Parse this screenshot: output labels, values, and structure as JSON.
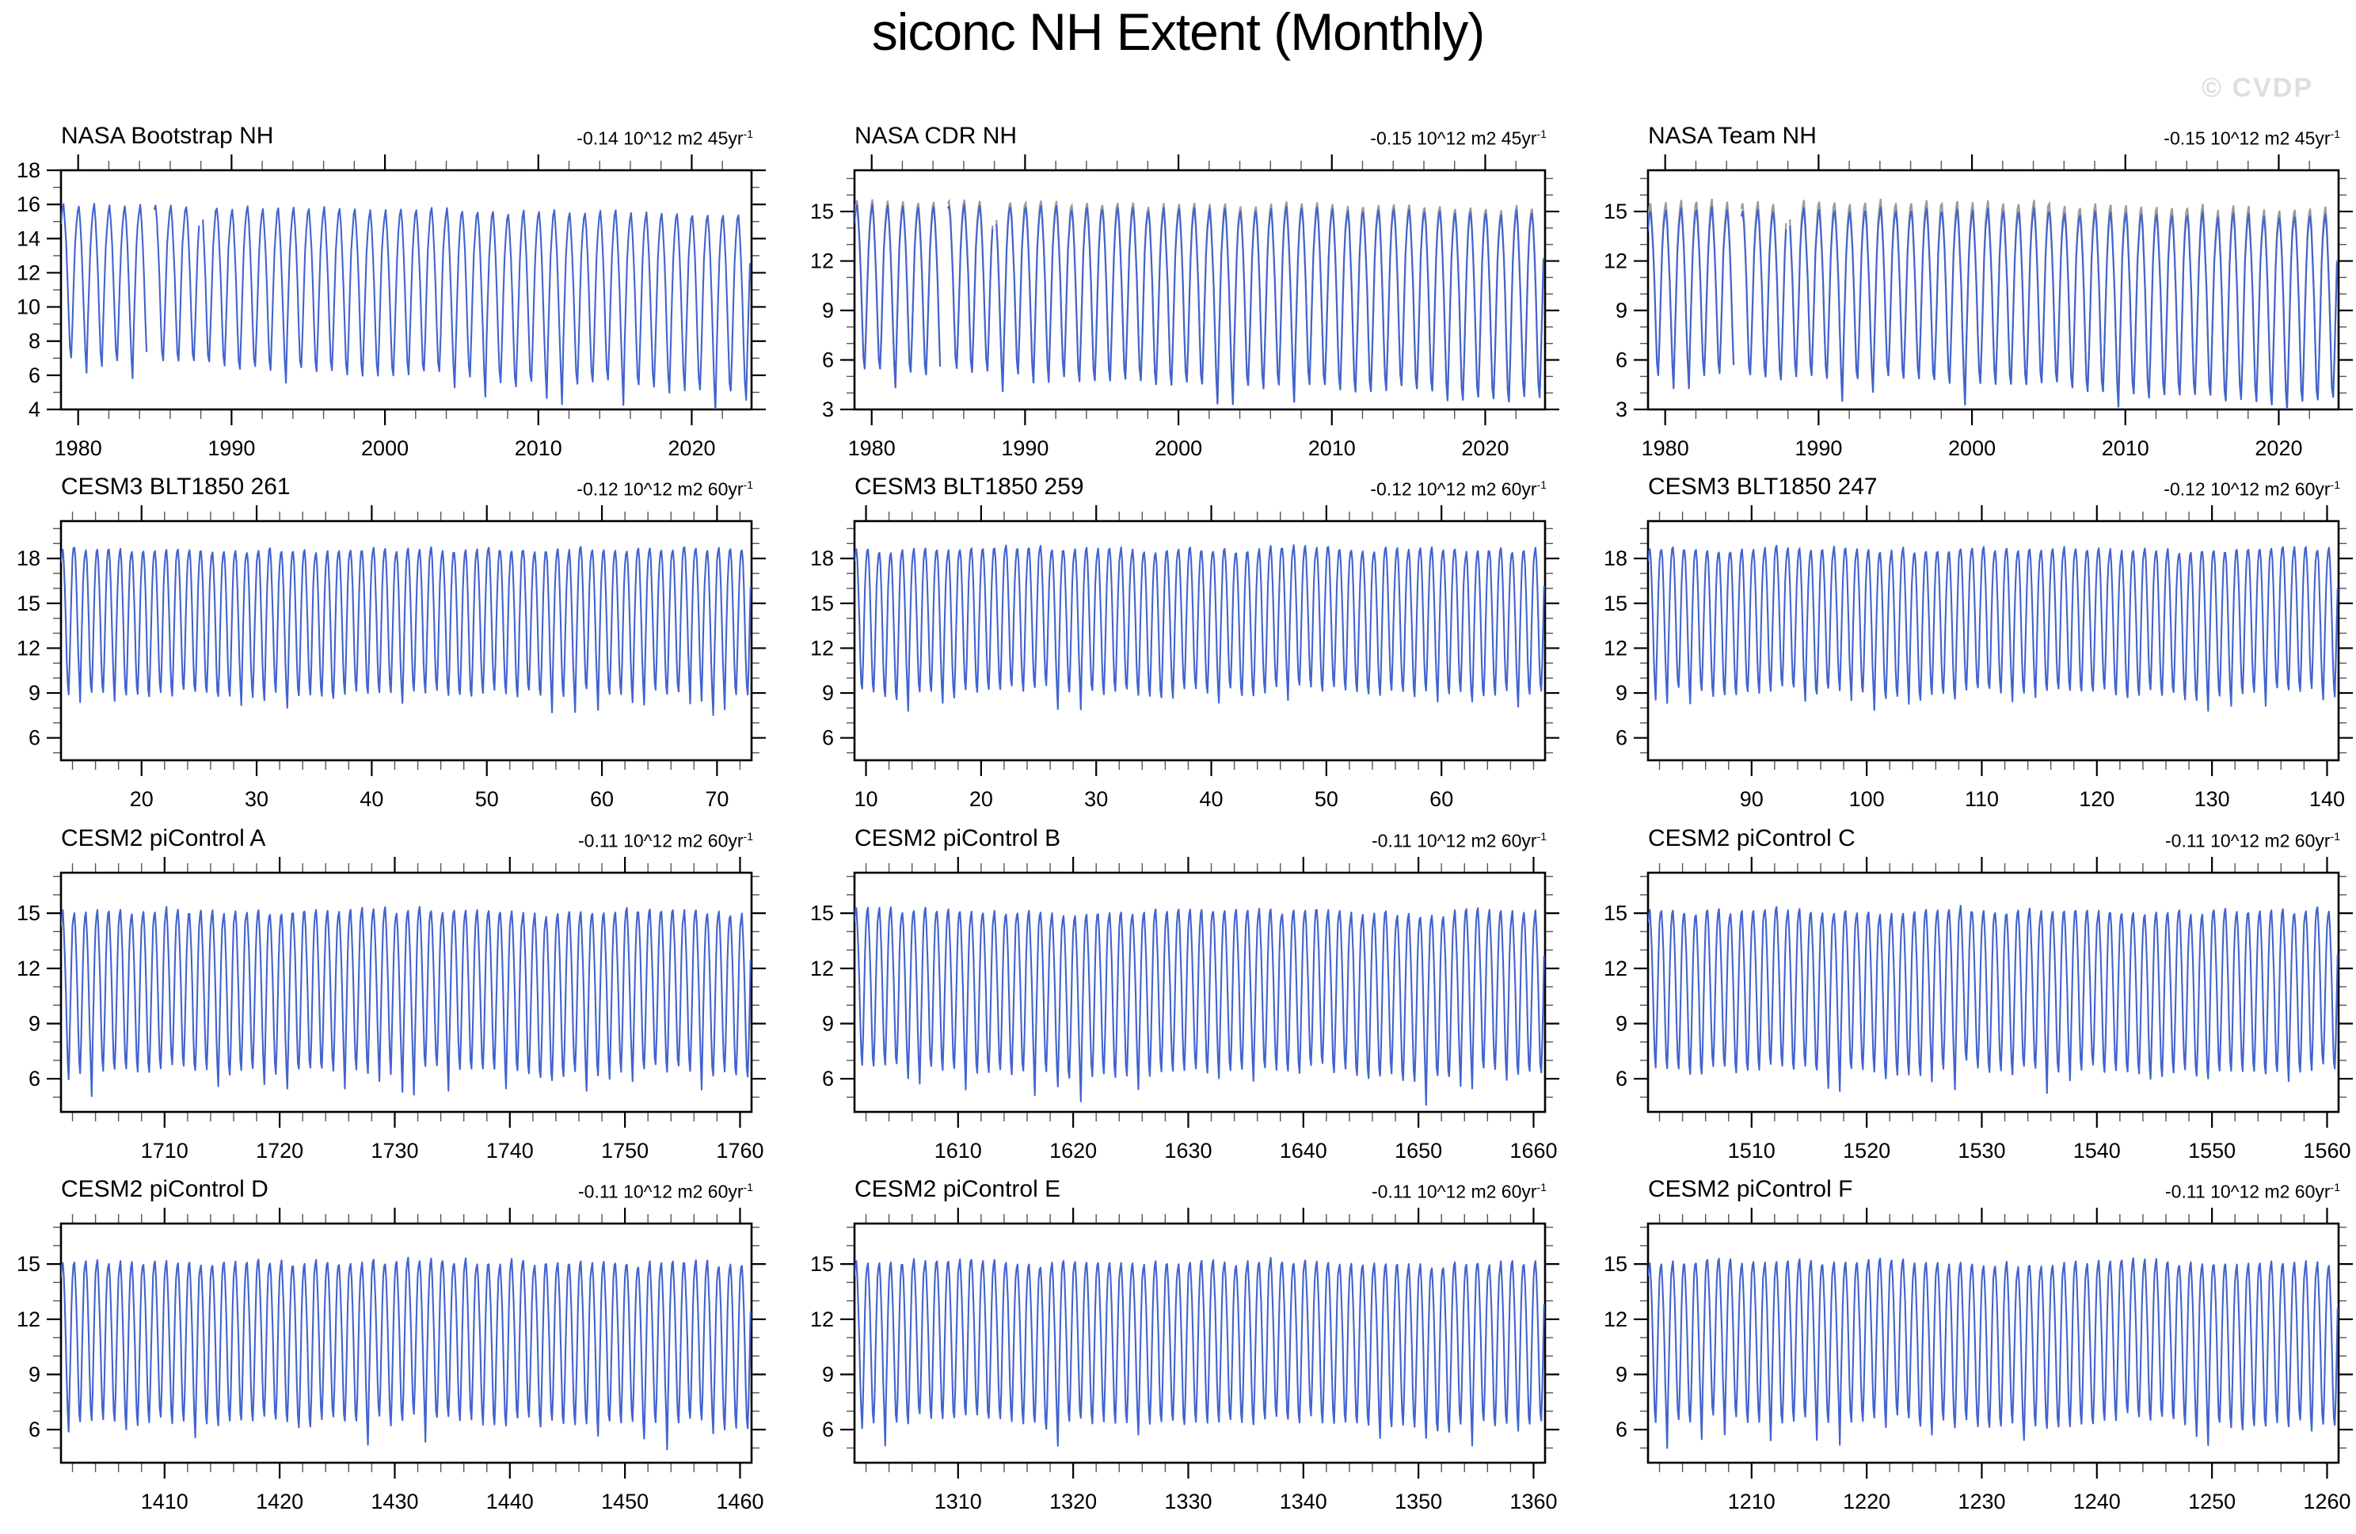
{
  "page": {
    "title": "siconc NH Extent (Monthly)",
    "watermark": "© CVDP",
    "background": "#ffffff"
  },
  "colors": {
    "series_blue": "#4263cf",
    "overlay_gray": "#9a9a9a",
    "frame_black": "#000000",
    "minor_tick": "#555555",
    "watermark_gray": "#dedede"
  },
  "climatologies": {
    "bootstrap": [
      14.7,
      15.6,
      15.9,
      15.0,
      13.6,
      11.7,
      9.4,
      7.4,
      6.9,
      8.9,
      11.3,
      13.5
    ],
    "cdr": [
      14.2,
      15.1,
      15.4,
      14.5,
      13.0,
      11.1,
      8.5,
      6.2,
      5.6,
      7.7,
      10.3,
      12.8
    ],
    "team": [
      14.0,
      14.9,
      15.2,
      14.3,
      12.8,
      10.9,
      8.3,
      6.0,
      5.4,
      7.5,
      10.1,
      12.6
    ],
    "cesm3": [
      17.7,
      18.4,
      18.6,
      17.8,
      16.1,
      13.8,
      11.3,
      9.6,
      9.1,
      10.9,
      13.6,
      16.1
    ],
    "cesm2": [
      14.3,
      14.9,
      15.1,
      14.2,
      12.8,
      10.9,
      8.7,
      7.0,
      6.5,
      8.0,
      10.3,
      12.7
    ]
  },
  "chart_data": [
    {
      "type": "line",
      "title": "NASA Bootstrap NH",
      "trend_label": "-0.14 10^12 m2 45yr",
      "trend_exp": "-1",
      "xlim": [
        1978.88,
        2023.9
      ],
      "xticks": [
        1980,
        1990,
        2000,
        2010,
        2020
      ],
      "x_minor_step": 2,
      "ylim": [
        4,
        18
      ],
      "yticks": [
        4,
        6,
        8,
        10,
        12,
        14,
        16,
        18
      ],
      "y_minor_step": 1,
      "years": 45,
      "clim": "bootstrap",
      "seed": 11,
      "interannual_noise": 0.3,
      "trend_total": -1.0,
      "gaps": [
        [
          1984.5,
          1984.96
        ],
        [
          1987.9,
          1988.12
        ]
      ],
      "has_overlay": false,
      "overlay_peak_boost": 0,
      "approx_range": {
        "winter_max": 16.2,
        "summer_min": 6.0
      }
    },
    {
      "type": "line",
      "title": "NASA CDR NH",
      "trend_label": "-0.15 10^12 m2 45yr",
      "trend_exp": "-1",
      "xlim": [
        1978.88,
        2023.9
      ],
      "xticks": [
        1980,
        1990,
        2000,
        2010,
        2020
      ],
      "x_minor_step": 2,
      "ylim": [
        3,
        17.5
      ],
      "yticks": [
        3,
        6,
        9,
        12,
        15
      ],
      "y_minor_step": 1,
      "years": 45,
      "clim": "cdr",
      "seed": 12,
      "interannual_noise": 0.32,
      "trend_total": -1.2,
      "gaps": [
        [
          1984.5,
          1984.96
        ],
        [
          1987.9,
          1988.12
        ]
      ],
      "has_overlay": true,
      "overlay_peak_boost": 0.3,
      "approx_range": {
        "winter_max": 15.8,
        "summer_min": 4.5
      }
    },
    {
      "type": "line",
      "title": "NASA Team NH",
      "trend_label": "-0.15 10^12 m2 45yr",
      "trend_exp": "-1",
      "xlim": [
        1978.88,
        2023.9
      ],
      "xticks": [
        1980,
        1990,
        2000,
        2010,
        2020
      ],
      "x_minor_step": 2,
      "ylim": [
        3,
        17.5
      ],
      "yticks": [
        3,
        6,
        9,
        12,
        15
      ],
      "y_minor_step": 1,
      "years": 45,
      "clim": "team",
      "seed": 13,
      "interannual_noise": 0.32,
      "trend_total": -1.2,
      "gaps": [
        [
          1984.5,
          1984.96
        ],
        [
          1987.9,
          1988.12
        ]
      ],
      "has_overlay": true,
      "overlay_peak_boost": 0.5,
      "approx_range": {
        "winter_max": 15.5,
        "summer_min": 4.3
      }
    },
    {
      "type": "line",
      "title": "CESM3 BLT1850 261",
      "trend_label": "-0.12 10^12 m2 60yr",
      "trend_exp": "-1",
      "xlim": [
        13,
        73
      ],
      "xticks": [
        20,
        30,
        40,
        50,
        60,
        70
      ],
      "x_minor_step": 2,
      "ylim": [
        4.5,
        20.5
      ],
      "yticks": [
        6,
        9,
        12,
        15,
        18
      ],
      "y_minor_step": 1,
      "years": 60,
      "clim": "cesm3",
      "seed": 21,
      "interannual_noise": 0.5,
      "trend_total": -0.1,
      "gaps": [],
      "has_overlay": false,
      "overlay_peak_boost": 0,
      "approx_range": {
        "winter_max": 19.3,
        "summer_min": 8.2
      }
    },
    {
      "type": "line",
      "title": "CESM3 BLT1850 259",
      "trend_label": "-0.12 10^12 m2 60yr",
      "trend_exp": "-1",
      "xlim": [
        9,
        69
      ],
      "xticks": [
        10,
        20,
        30,
        40,
        50,
        60
      ],
      "x_minor_step": 2,
      "ylim": [
        4.5,
        20.5
      ],
      "yticks": [
        6,
        9,
        12,
        15,
        18
      ],
      "y_minor_step": 1,
      "years": 60,
      "clim": "cesm3",
      "seed": 22,
      "interannual_noise": 0.5,
      "trend_total": -0.1,
      "gaps": [],
      "has_overlay": false,
      "overlay_peak_boost": 0,
      "approx_range": {
        "winter_max": 18.8,
        "summer_min": 7.5
      }
    },
    {
      "type": "line",
      "title": "CESM3 BLT1850 247",
      "trend_label": "-0.12 10^12 m2 60yr",
      "trend_exp": "-1",
      "xlim": [
        81,
        141
      ],
      "xticks": [
        90,
        100,
        110,
        120,
        130,
        140
      ],
      "x_minor_step": 2,
      "ylim": [
        4.5,
        20.5
      ],
      "yticks": [
        6,
        9,
        12,
        15,
        18
      ],
      "y_minor_step": 1,
      "years": 60,
      "clim": "cesm3",
      "seed": 23,
      "interannual_noise": 0.5,
      "trend_total": -0.1,
      "gaps": [],
      "has_overlay": false,
      "overlay_peak_boost": 0,
      "approx_range": {
        "winter_max": 19.0,
        "summer_min": 7.9
      }
    },
    {
      "type": "line",
      "title": "CESM2 piControl A",
      "trend_label": "-0.11 10^12 m2 60yr",
      "trend_exp": "-1",
      "xlim": [
        1701,
        1761
      ],
      "xticks": [
        1710,
        1720,
        1730,
        1740,
        1750,
        1760
      ],
      "x_minor_step": 2,
      "ylim": [
        4.2,
        17.2
      ],
      "yticks": [
        6,
        9,
        12,
        15
      ],
      "y_minor_step": 1,
      "years": 60,
      "clim": "cesm2",
      "seed": 31,
      "interannual_noise": 0.4,
      "trend_total": -0.1,
      "gaps": [],
      "has_overlay": false,
      "overlay_peak_boost": 0,
      "approx_range": {
        "winter_max": 15.5,
        "summer_min": 5.3
      }
    },
    {
      "type": "line",
      "title": "CESM2 piControl B",
      "trend_label": "-0.11 10^12 m2 60yr",
      "trend_exp": "-1",
      "xlim": [
        1601,
        1661
      ],
      "xticks": [
        1610,
        1620,
        1630,
        1640,
        1650,
        1660
      ],
      "x_minor_step": 2,
      "ylim": [
        4.2,
        17.2
      ],
      "yticks": [
        6,
        9,
        12,
        15
      ],
      "y_minor_step": 1,
      "years": 60,
      "clim": "cesm2",
      "seed": 32,
      "interannual_noise": 0.4,
      "trend_total": -0.1,
      "gaps": [],
      "has_overlay": false,
      "overlay_peak_boost": 0,
      "approx_range": {
        "winter_max": 15.4,
        "summer_min": 5.5
      }
    },
    {
      "type": "line",
      "title": "CESM2 piControl C",
      "trend_label": "-0.11 10^12 m2 60yr",
      "trend_exp": "-1",
      "xlim": [
        1501,
        1561
      ],
      "xticks": [
        1510,
        1520,
        1530,
        1540,
        1550,
        1560
      ],
      "x_minor_step": 2,
      "ylim": [
        4.2,
        17.2
      ],
      "yticks": [
        6,
        9,
        12,
        15
      ],
      "y_minor_step": 1,
      "years": 60,
      "clim": "cesm2",
      "seed": 33,
      "interannual_noise": 0.4,
      "trend_total": -0.1,
      "gaps": [],
      "has_overlay": false,
      "overlay_peak_boost": 0,
      "approx_range": {
        "winter_max": 15.6,
        "summer_min": 5.6
      }
    },
    {
      "type": "line",
      "title": "CESM2 piControl D",
      "trend_label": "-0.11 10^12 m2 60yr",
      "trend_exp": "-1",
      "xlim": [
        1401,
        1461
      ],
      "xticks": [
        1410,
        1420,
        1430,
        1440,
        1450,
        1460
      ],
      "x_minor_step": 2,
      "ylim": [
        4.2,
        17.2
      ],
      "yticks": [
        6,
        9,
        12,
        15
      ],
      "y_minor_step": 1,
      "years": 60,
      "clim": "cesm2",
      "seed": 34,
      "interannual_noise": 0.4,
      "trend_total": -0.1,
      "gaps": [],
      "has_overlay": false,
      "overlay_peak_boost": 0,
      "approx_range": {
        "winter_max": 15.7,
        "summer_min": 5.9
      }
    },
    {
      "type": "line",
      "title": "CESM2 piControl E",
      "trend_label": "-0.11 10^12 m2 60yr",
      "trend_exp": "-1",
      "xlim": [
        1301,
        1361
      ],
      "xticks": [
        1310,
        1320,
        1330,
        1340,
        1350,
        1360
      ],
      "x_minor_step": 2,
      "ylim": [
        4.2,
        17.2
      ],
      "yticks": [
        6,
        9,
        12,
        15
      ],
      "y_minor_step": 1,
      "years": 60,
      "clim": "cesm2",
      "seed": 35,
      "interannual_noise": 0.4,
      "trend_total": -0.1,
      "gaps": [],
      "has_overlay": false,
      "overlay_peak_boost": 0,
      "approx_range": {
        "winter_max": 15.3,
        "summer_min": 5.2
      }
    },
    {
      "type": "line",
      "title": "CESM2 piControl F",
      "trend_label": "-0.11 10^12 m2 60yr",
      "trend_exp": "-1",
      "xlim": [
        1201,
        1261
      ],
      "xticks": [
        1210,
        1220,
        1230,
        1240,
        1250,
        1260
      ],
      "x_minor_step": 2,
      "ylim": [
        4.2,
        17.2
      ],
      "yticks": [
        6,
        9,
        12,
        15
      ],
      "y_minor_step": 1,
      "years": 60,
      "clim": "cesm2",
      "seed": 36,
      "interannual_noise": 0.4,
      "trend_total": -0.1,
      "gaps": [],
      "has_overlay": false,
      "overlay_peak_boost": 0,
      "approx_range": {
        "winter_max": 15.4,
        "summer_min": 5.8
      }
    }
  ]
}
